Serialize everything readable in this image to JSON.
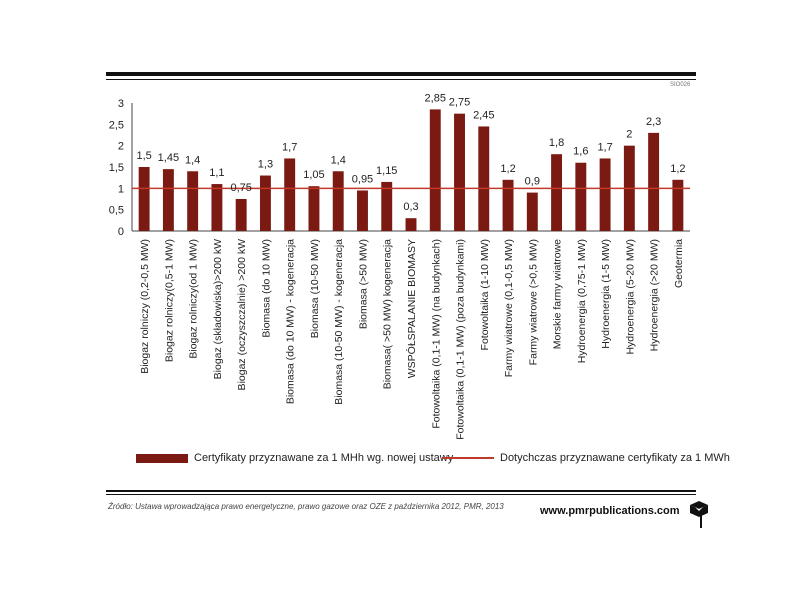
{
  "chart_data": {
    "type": "bar",
    "title": "",
    "xlabel": "",
    "ylabel": "",
    "ylim": [
      0,
      3
    ],
    "yticks": [
      "0",
      "0,5",
      "1",
      "1,5",
      "2",
      "2,5",
      "3"
    ],
    "grid": false,
    "legend_position": "bottom",
    "categories": [
      "Biogaz rolniczy (0,2-0,5 MW)",
      "Biogaz rolniczy(0,5-1 MW)",
      "Biogaz rolniczy(od 1 MW)",
      "Biogaz (składowiska)>200 kW",
      "Biogaz (oczyszczalnie) >200 kW",
      "Biomasa (do 10 MW)",
      "Biomasa (do 10 MW) - kogeneracja",
      "Biomasa (10-50 MW)",
      "Biomasa (10-50 MW) - kogeneracja",
      "Biomasa (>50 MW)",
      "Biomasa( >50 MW) kogeneracja",
      "WSPÓŁSPALANIE BIOMASY",
      "Fotowoltaika (0,1-1 MW) (na budynkach)",
      "Fotowoltaika (0,1-1 MW) (poza budynkami)",
      "Fotowoltaika (1-10 MW)",
      "Farmy wiatrowe (0,1-0,5 MW)",
      "Farmy wiatrowe (>0,5 MW)",
      "Morskie farmy wiatrowe",
      "Hydroenergia (0,75-1 MW)",
      "Hydroenergia (1-5 MW)",
      "Hydroenergia (5-20 MW)",
      "Hydroenergia (>20 MW)",
      "Geotermia"
    ],
    "series": [
      {
        "name": "Certyfikaty przyznawane za 1 MHh wg. nowej ustawy",
        "type": "bar",
        "color": "#7b1a12",
        "values": [
          1.5,
          1.45,
          1.4,
          1.1,
          0.75,
          1.3,
          1.7,
          1.05,
          1.4,
          0.95,
          1.15,
          0.3,
          2.85,
          2.75,
          2.45,
          1.2,
          0.9,
          1.8,
          1.6,
          1.7,
          2,
          2.3,
          1.2
        ],
        "value_labels": [
          "1,5",
          "1,45",
          "1,4",
          "1,1",
          "0,75",
          "1,3",
          "1,7",
          "1,05",
          "1,4",
          "0,95",
          "1,15",
          "0,3",
          "2,85",
          "2,75",
          "2,45",
          "1,2",
          "0,9",
          "1,8",
          "1,6",
          "1,7",
          "2",
          "2,3",
          "1,2"
        ]
      },
      {
        "name": "Dotychczas przyznawane certyfikaty za 1 MWh",
        "type": "line",
        "color": "#c0392b",
        "value": 1
      }
    ]
  },
  "footer": {
    "source": "Źródło: Ustawa wprowadzająca prawo energetyczne, prawo gazowe oraz OZE z października 2012, PMR, 2013",
    "brand": "www.pmrpublications.com",
    "code": "SIO026"
  },
  "colors": {
    "bar": "#7b1a12",
    "reference_line": "#c0392b",
    "rule": "#111111"
  },
  "icons": {
    "brand_logo": "cube-logo-icon"
  }
}
